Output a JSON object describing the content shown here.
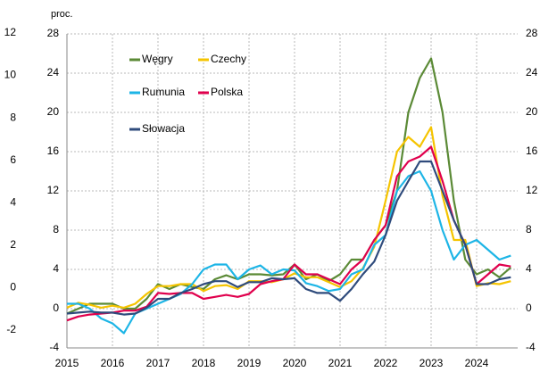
{
  "chart_data": [
    {
      "type": "line",
      "ylabel": "proc.",
      "x": [
        2015,
        2015.25,
        2015.5,
        2015.75,
        2016,
        2016.25,
        2016.5,
        2016.75,
        2017,
        2017.25,
        2017.5,
        2017.75,
        2018,
        2018.25,
        2018.5,
        2018.75,
        2019,
        2019.25,
        2019.5,
        2019.75,
        2020,
        2020.25,
        2020.5,
        2020.75,
        2021,
        2021.25,
        2021.5,
        2021.75,
        2022,
        2022.25,
        2022.5,
        2022.75,
        2023,
        2023.25,
        2023.5,
        2023.75,
        2024,
        2024.25,
        2024.5,
        2024.75
      ],
      "xlim": [
        2015,
        2025
      ],
      "xticks": [
        2015,
        2016,
        2017,
        2018,
        2019,
        2020,
        2021,
        2022,
        2023,
        2024
      ],
      "ylim": [
        -4,
        28
      ],
      "yticks": [
        -4,
        0,
        4,
        8,
        12,
        16,
        20,
        24,
        28
      ],
      "grid": true,
      "series": [
        {
          "name": "Węgry",
          "color": "#5b8a36",
          "values": [
            -0.5,
            0,
            0.5,
            0.5,
            0.5,
            0,
            0,
            1,
            2.5,
            2,
            2.5,
            2.2,
            2,
            3,
            3.4,
            3,
            3.5,
            3.5,
            3.4,
            3.5,
            4.5,
            3,
            3.5,
            2.8,
            3.5,
            5,
            5,
            7,
            8.5,
            12,
            20,
            23.5,
            25.5,
            20,
            11,
            5,
            3.5,
            4,
            3.2,
            4.2
          ]
        },
        {
          "name": "Czechy",
          "color": "#f5c400",
          "values": [
            0.1,
            0.6,
            0.4,
            0.1,
            0.3,
            0.1,
            0.5,
            1.5,
            2.3,
            2.3,
            2.5,
            2.5,
            1.8,
            2.3,
            2.4,
            2,
            2.8,
            2.8,
            2.7,
            3,
            3.6,
            3.2,
            3.2,
            2.7,
            2.2,
            2.8,
            4.1,
            6.3,
            11,
            16,
            17.5,
            16.5,
            18.5,
            11.5,
            7,
            7,
            2.3,
            2.6,
            2.5,
            2.8
          ]
        },
        {
          "name": "Rumunia",
          "color": "#1db5e6",
          "values": [
            0.5,
            0.5,
            0,
            -1,
            -1.5,
            -2.5,
            -0.5,
            0,
            0.5,
            1,
            1.5,
            2.5,
            4,
            4.5,
            4.5,
            3,
            4,
            4.4,
            3.5,
            4,
            3.9,
            2.6,
            2.3,
            1.8,
            2,
            3.5,
            4,
            6.5,
            7.5,
            12,
            13.5,
            14,
            12,
            8,
            5,
            6.5,
            7,
            6,
            5,
            5.4
          ]
        },
        {
          "name": "Polska",
          "color": "#e0004d",
          "values": [
            -1.2,
            -0.8,
            -0.6,
            -0.5,
            -0.4,
            -0.2,
            -0.2,
            0.2,
            1.6,
            1.5,
            1.6,
            1.6,
            1,
            1.2,
            1.4,
            1.2,
            1.5,
            2.5,
            2.8,
            3,
            4.5,
            3.5,
            3.5,
            3,
            2.5,
            4,
            5,
            7,
            8.5,
            13.5,
            15,
            15.5,
            16.5,
            13,
            9,
            6.5,
            2.5,
            3.5,
            4.5,
            4.3
          ]
        },
        {
          "name": "Słowacja",
          "color": "#2f4b7c",
          "values": [
            -0.5,
            -0.4,
            -0.3,
            -0.4,
            -0.4,
            -0.6,
            -0.5,
            0.1,
            1,
            1,
            1.6,
            2,
            2.5,
            2.8,
            2.8,
            2.2,
            2.7,
            2.7,
            3.1,
            3,
            3.1,
            2,
            1.6,
            1.6,
            0.8,
            2,
            3.5,
            4.8,
            7.5,
            11,
            13,
            15,
            15,
            12,
            9,
            6.5,
            2.5,
            2.5,
            3,
            3.2
          ]
        }
      ]
    },
    {
      "type": "line",
      "ylim": [
        -2,
        12
      ],
      "yticks": [
        -2,
        0,
        2,
        4,
        6,
        8,
        10,
        12
      ]
    }
  ]
}
